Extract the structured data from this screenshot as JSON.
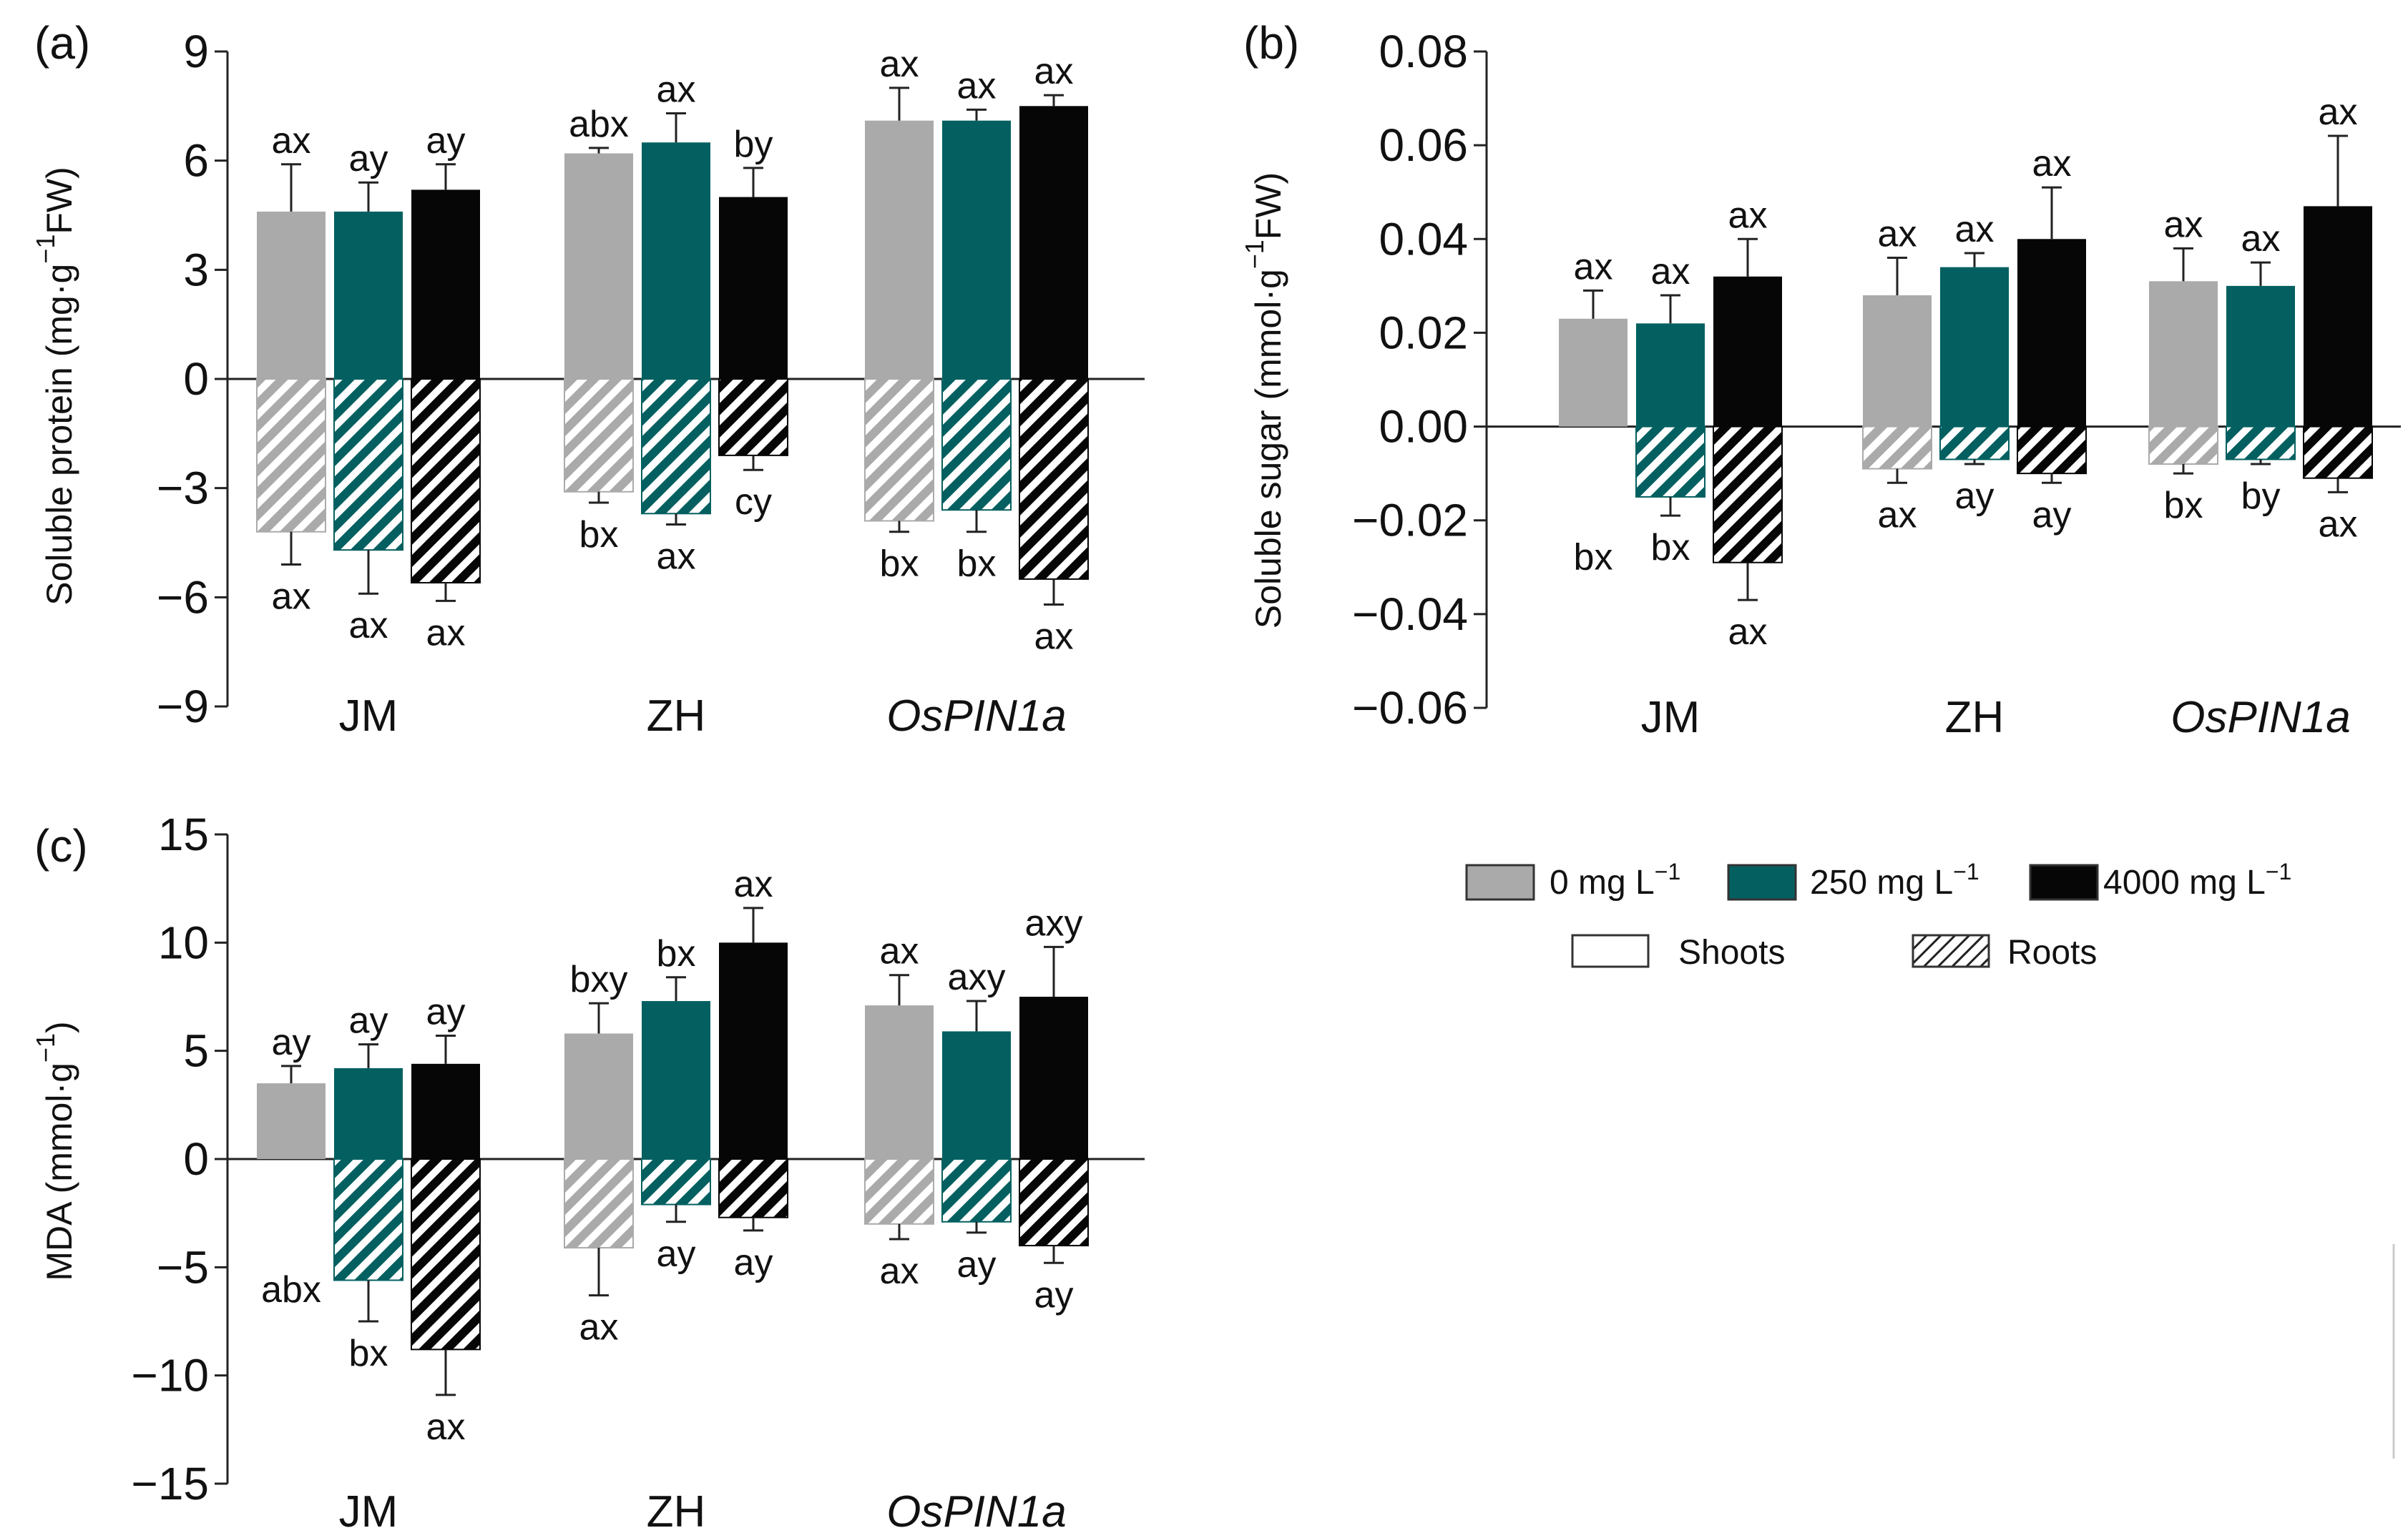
{
  "chart_data": [
    {
      "panel": "(a)",
      "type": "bar",
      "ylabel_main": "Soluble protein (mg·g",
      "ylabel_sup": "−1",
      "ylabel_tail": "FW)",
      "ylim": [
        -9,
        9
      ],
      "yticks": [
        9,
        6,
        3,
        0,
        -3,
        -6,
        -9
      ],
      "ytick_labels": [
        "9",
        "6",
        "3",
        "0",
        "−3",
        "−6",
        "−9"
      ],
      "categories": [
        {
          "label": "JM",
          "italic": false
        },
        {
          "label": "ZH",
          "italic": false
        },
        {
          "label": "OsPIN1a",
          "italic": true
        }
      ],
      "series": [
        {
          "name": "0 mg L−1",
          "shoots": [
            4.6,
            6.2,
            7.1
          ],
          "shoots_err": [
            1.3,
            0.15,
            0.9
          ],
          "shoots_letters": [
            "ax",
            "abx",
            "ax"
          ],
          "roots": [
            -4.2,
            -3.1,
            -3.9
          ],
          "roots_err": [
            0.9,
            0.3,
            0.3
          ],
          "roots_letters": [
            "ax",
            "bx",
            "bx"
          ]
        },
        {
          "name": "250 mg L−1",
          "shoots": [
            4.6,
            6.5,
            7.1
          ],
          "shoots_err": [
            0.8,
            0.8,
            0.3
          ],
          "shoots_letters": [
            "ay",
            "ax",
            "ax"
          ],
          "roots": [
            -4.7,
            -3.7,
            -3.6
          ],
          "roots_err": [
            1.2,
            0.3,
            0.6
          ],
          "roots_letters": [
            "ax",
            "ax",
            "bx"
          ]
        },
        {
          "name": "4000 mg L−1",
          "shoots": [
            5.2,
            5.0,
            7.5
          ],
          "shoots_err": [
            0.7,
            0.8,
            0.3
          ],
          "shoots_letters": [
            "ay",
            "by",
            "ax"
          ],
          "roots": [
            -5.6,
            -2.1,
            -5.5
          ],
          "roots_err": [
            0.5,
            0.4,
            0.7
          ],
          "roots_letters": [
            "ax",
            "cy",
            "ax"
          ]
        }
      ]
    },
    {
      "panel": "(b)",
      "type": "bar",
      "ylabel_main": "Soluble sugar (mmol·g",
      "ylabel_sup": "−1",
      "ylabel_tail": "FW)",
      "ylim": [
        -0.06,
        0.08
      ],
      "yticks": [
        0.08,
        0.06,
        0.04,
        0.02,
        0.0,
        -0.02,
        -0.04,
        -0.06
      ],
      "ytick_labels": [
        "0.08",
        "0.06",
        "0.04",
        "0.02",
        "0.00",
        "−0.02",
        "−0.04",
        "−0.06"
      ],
      "categories": [
        {
          "label": "JM",
          "italic": false
        },
        {
          "label": "ZH",
          "italic": false
        },
        {
          "label": "OsPIN1a",
          "italic": true
        }
      ],
      "series": [
        {
          "name": "0 mg L−1",
          "shoots": [
            0.023,
            0.028,
            0.031
          ],
          "shoots_err": [
            0.006,
            0.008,
            0.007
          ],
          "shoots_letters": [
            "ax",
            "ax",
            "ax"
          ],
          "roots": [
            0.0,
            -0.009,
            -0.008
          ],
          "roots_err": [
            0.0,
            0.003,
            0.002
          ],
          "roots_letters": [
            "bx",
            "ax",
            "bx"
          ]
        },
        {
          "name": "250 mg L−1",
          "shoots": [
            0.022,
            0.034,
            0.03
          ],
          "shoots_err": [
            0.006,
            0.003,
            0.005
          ],
          "shoots_letters": [
            "ax",
            "ax",
            "ax"
          ],
          "roots": [
            -0.015,
            -0.007,
            -0.007
          ],
          "roots_err": [
            0.004,
            0.001,
            0.001
          ],
          "roots_letters": [
            "bx",
            "ay",
            "by"
          ]
        },
        {
          "name": "4000 mg L−1",
          "shoots": [
            0.032,
            0.04,
            0.047
          ],
          "shoots_err": [
            0.008,
            0.011,
            0.015
          ],
          "shoots_letters": [
            "ax",
            "ax",
            "ax"
          ],
          "roots": [
            -0.029,
            -0.01,
            -0.011
          ],
          "roots_err": [
            0.008,
            0.002,
            0.003
          ],
          "roots_letters": [
            "ax",
            "ay",
            "ax"
          ]
        }
      ]
    },
    {
      "panel": "(c)",
      "type": "bar",
      "ylabel_main": "MDA (mmol·g",
      "ylabel_sup": "−1",
      "ylabel_tail": ")",
      "ylim": [
        -15,
        15
      ],
      "yticks": [
        15,
        10,
        5,
        0,
        -5,
        -10,
        -15
      ],
      "ytick_labels": [
        "15",
        "10",
        "5",
        "0",
        "−5",
        "−10",
        "−15"
      ],
      "categories": [
        {
          "label": "JM",
          "italic": false
        },
        {
          "label": "ZH",
          "italic": false
        },
        {
          "label": "OsPIN1a",
          "italic": true
        }
      ],
      "series": [
        {
          "name": "0 mg L−1",
          "shoots": [
            3.5,
            5.8,
            7.1
          ],
          "shoots_err": [
            0.8,
            1.4,
            1.4
          ],
          "shoots_letters": [
            "ay",
            "bxy",
            "ax"
          ],
          "roots": [
            0.0,
            -4.1,
            -3.0
          ],
          "roots_err": [
            0.0,
            2.2,
            0.7
          ],
          "roots_letters": [
            "abx",
            "ax",
            "ax"
          ]
        },
        {
          "name": "250 mg L−1",
          "shoots": [
            4.2,
            7.3,
            5.9
          ],
          "shoots_err": [
            1.1,
            1.1,
            1.4
          ],
          "shoots_letters": [
            "ay",
            "bx",
            "axy"
          ],
          "roots": [
            -5.6,
            -2.1,
            -2.9
          ],
          "roots_err": [
            1.9,
            0.8,
            0.5
          ],
          "roots_letters": [
            "bx",
            "ay",
            "ay"
          ]
        },
        {
          "name": "4000 mg L−1",
          "shoots": [
            4.4,
            10.0,
            7.5
          ],
          "shoots_err": [
            1.3,
            1.6,
            2.3
          ],
          "shoots_letters": [
            "ay",
            "ax",
            "axy"
          ],
          "roots": [
            -8.8,
            -2.7,
            -4.0
          ],
          "roots_err": [
            2.1,
            0.6,
            0.8
          ],
          "roots_letters": [
            "ax",
            "ay",
            "ay"
          ]
        }
      ]
    }
  ],
  "colors": {
    "c0": "#aaaaaa",
    "c250": "#046060",
    "c4000": "#060606"
  },
  "legend": {
    "items": [
      {
        "label_main": "0 mg L",
        "label_sup": "−1",
        "color": "#aaaaaa"
      },
      {
        "label_main": "250 mg L",
        "label_sup": "−1",
        "color": "#046060"
      },
      {
        "label_main": "4000 mg L",
        "label_sup": "−1",
        "color": "#060606"
      }
    ],
    "shoots_label": "Shoots",
    "roots_label": "Roots"
  }
}
